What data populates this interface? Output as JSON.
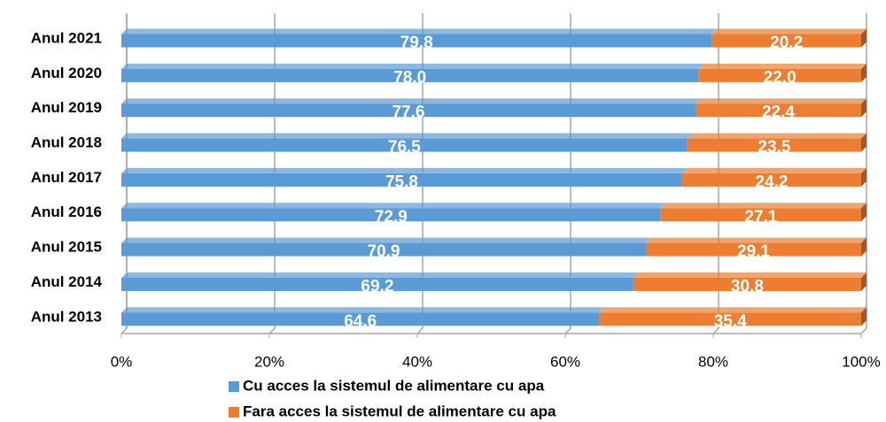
{
  "chart_data": {
    "type": "stacked_bar_horizontal",
    "categories": [
      "Anul 2021",
      "Anul 2020",
      "Anul 2019",
      "Anul 2018",
      "Anul 2017",
      "Anul 2016",
      "Anul 2015",
      "Anul 2014",
      "Anul 2013"
    ],
    "series": [
      {
        "name": "Cu acces la sistemul de alimentare cu apa",
        "color": "#5b9bd5",
        "values": [
          79.8,
          78.0,
          77.6,
          76.5,
          75.8,
          72.9,
          70.9,
          69.2,
          64.6
        ],
        "value_labels": [
          "79.8",
          "78.0",
          "77.6",
          "76.5",
          "75.8",
          "72.9",
          "70.9",
          "69.2",
          "64.6"
        ]
      },
      {
        "name": "Fara acces la sistemul de alimentare cu apa",
        "color": "#ed7d31",
        "values": [
          20.2,
          22.0,
          22.4,
          23.5,
          24.2,
          27.1,
          29.1,
          30.8,
          35.4
        ],
        "value_labels": [
          "20.2",
          "22.0",
          "22.4",
          "23.5",
          "24.2",
          "27.1",
          "29.1",
          "30.8",
          "35.4"
        ]
      }
    ],
    "xlim": [
      0,
      100
    ],
    "xticks": [
      {
        "value": 0,
        "label": "0%"
      },
      {
        "value": 20,
        "label": "20%"
      },
      {
        "value": 40,
        "label": "40%"
      },
      {
        "value": 60,
        "label": "60%"
      },
      {
        "value": 80,
        "label": "80%"
      },
      {
        "value": 100,
        "label": "100%"
      }
    ],
    "grid": true,
    "legend": "bottom"
  }
}
